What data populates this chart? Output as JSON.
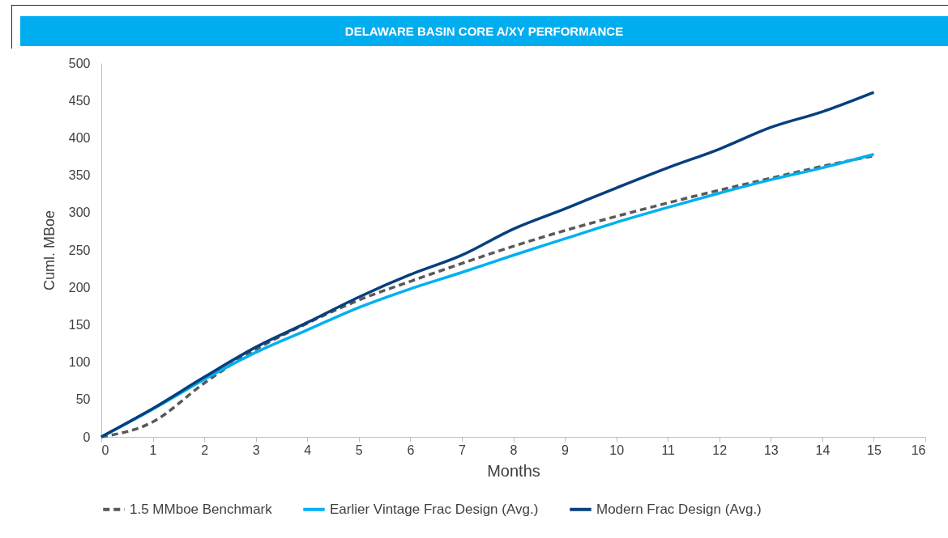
{
  "chart_data": {
    "type": "line",
    "title": "DELAWARE BASIN CORE A/XY PERFORMANCE",
    "xlabel": "Months",
    "ylabel": "Cuml. MBoe",
    "x": [
      0,
      1,
      2,
      3,
      4,
      5,
      6,
      7,
      8,
      9,
      10,
      11,
      12,
      13,
      14,
      15
    ],
    "series": [
      {
        "name": "1.5 MMboe Benchmark",
        "color": "#595959",
        "line_style": "dashed",
        "values": [
          0,
          20,
          72,
          117,
          152,
          183,
          208,
          232,
          255,
          276,
          295,
          313,
          330,
          346,
          362,
          376
        ]
      },
      {
        "name": "Earlier Vintage Frac Design (Avg.)",
        "color": "#00b0f0",
        "line_style": "solid",
        "values": [
          0,
          37,
          77,
          113,
          143,
          173,
          198,
          220,
          243,
          265,
          287,
          307,
          326,
          344,
          360,
          378
        ]
      },
      {
        "name": "Modern Frac Design (Avg.)",
        "color": "#073f7d",
        "line_style": "solid",
        "values": [
          0,
          38,
          80,
          120,
          153,
          187,
          217,
          243,
          278,
          305,
          333,
          360,
          385,
          414,
          435,
          461
        ]
      }
    ],
    "xlim": [
      0,
      16
    ],
    "xticks": [
      0,
      1,
      2,
      3,
      4,
      5,
      6,
      7,
      8,
      9,
      10,
      11,
      12,
      13,
      14,
      15,
      16
    ],
    "ylim": [
      0,
      500
    ],
    "yticks": [
      0,
      50,
      100,
      150,
      200,
      250,
      300,
      350,
      400,
      450,
      500
    ],
    "grid": false,
    "legend": "bottom",
    "marker": "none"
  }
}
